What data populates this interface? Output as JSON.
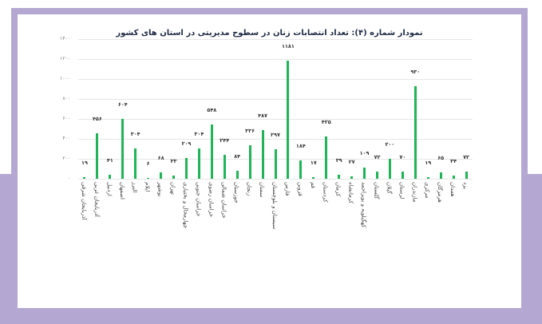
{
  "frame": {
    "color": "#b4a8d2"
  },
  "chart_data": {
    "type": "bar",
    "title": "نمودار شماره (۴): تعداد انتصابات زنان در سطوح مدیریتی در استان های کشور",
    "xlabel": "",
    "ylabel": "",
    "ylim": [
      0,
      1400
    ],
    "yticks": [
      "۰",
      "۲۰۰",
      "۴۰۰",
      "۶۰۰",
      "۸۰۰",
      "۱۰۰۰",
      "۱۲۰۰",
      "۱۴۰۰"
    ],
    "grid": true,
    "bar_color": "#1fb457",
    "categories": [
      "آذربایجان شرقی",
      "آذربایجان غربی",
      "اردبیل",
      "اصفهان",
      "البرز",
      "ایلام",
      "بوشهر",
      "تهران",
      "چهارمحال و بختیاری",
      "خراسان جنوبی",
      "خراسان رضوی",
      "خراسان شمالی",
      "خوزستان",
      "زنجان",
      "سمنان",
      "سیستان و بلوچستان",
      "فارس",
      "قزوین",
      "قم",
      "کردستان",
      "کرمان",
      "کرمانشاه",
      "کهگیلویه و بویراحمد",
      "گلستان",
      "گیلان",
      "لرستان",
      "مازندران",
      "مرکزی",
      "هرمزگان",
      "همدان",
      "یزد"
    ],
    "values": [
      19,
      456,
      41,
      604,
      304,
      6,
      68,
      33,
      209,
      304,
      548,
      244,
      84,
      336,
      487,
      297,
      1181,
      184,
      17,
      425,
      39,
      27,
      109,
      72,
      200,
      70,
      930,
      19,
      65,
      34,
      72
    ],
    "value_labels": [
      "۱۹",
      "۴۵۶",
      "۴۱",
      "۶۰۴",
      "۳۰۴",
      "۶",
      "۶۸",
      "۳۳",
      "۲۰۹",
      "۳۰۴",
      "۵۴۸",
      "۲۴۴",
      "۸۴",
      "۳۳۶",
      "۴۸۷",
      "۲۹۷",
      "۱۱۸۱",
      "۱۸۴",
      "۱۷",
      "۴۲۵",
      "۳۹",
      "۲۷",
      "۱۰۹",
      "۷۲",
      "۲۰۰",
      "۷۰",
      "۹۳۰",
      "۱۹",
      "۶۵",
      "۳۴",
      "۷۲"
    ]
  }
}
